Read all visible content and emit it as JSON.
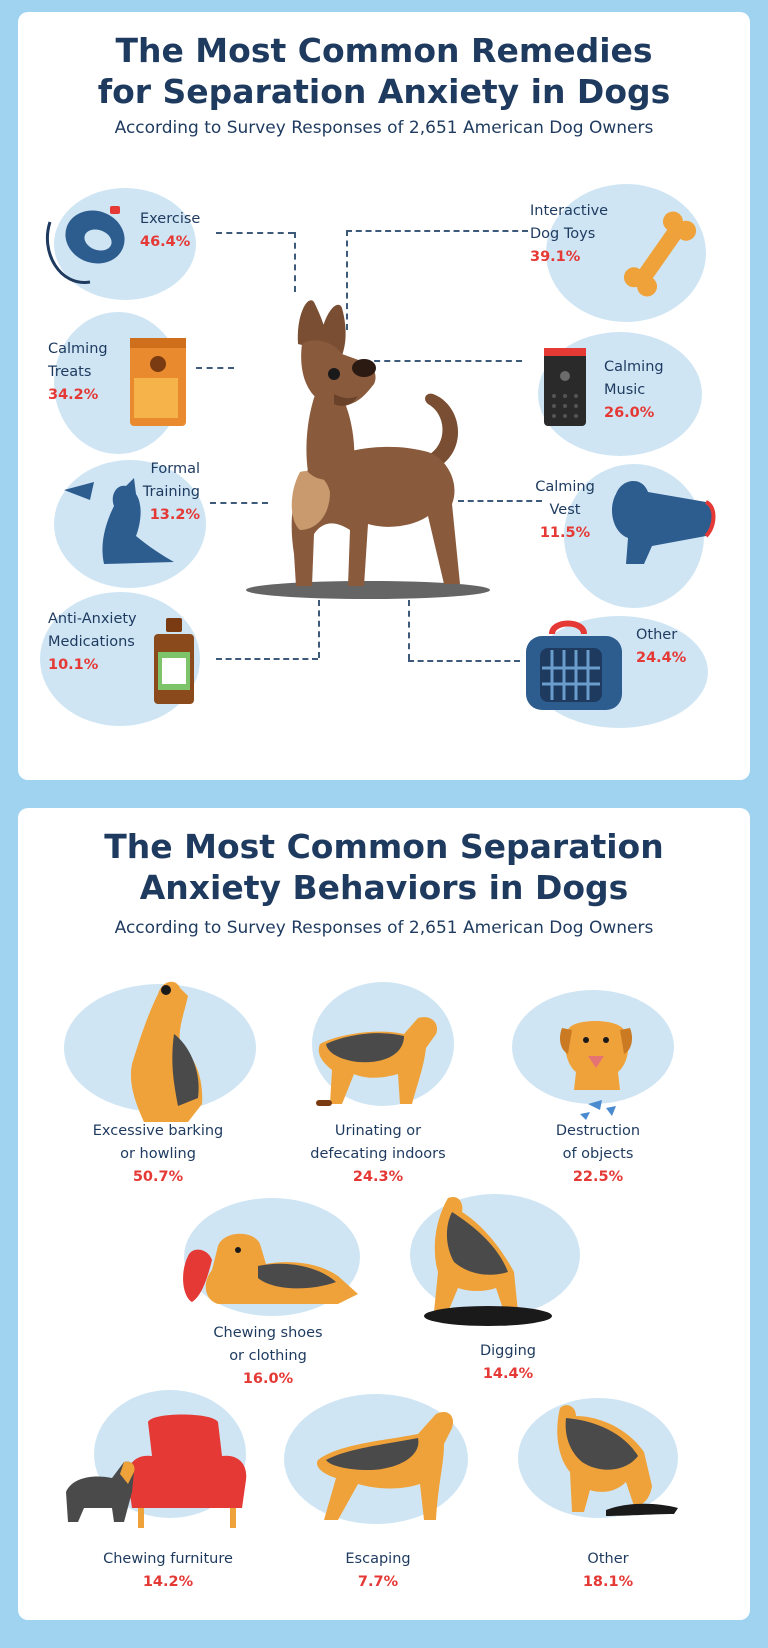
{
  "remedies": {
    "title_line1": "The Most Common Remedies",
    "title_line2": "for Separation Anxiety in Dogs",
    "subtitle": "According to Survey Responses of 2,651 American Dog Owners",
    "items": [
      {
        "label": "Exercise",
        "label2": "",
        "value": "46.4%",
        "icon": "leash-icon"
      },
      {
        "label": "Calming",
        "label2": "Treats",
        "value": "34.2%",
        "icon": "treat-bag-icon"
      },
      {
        "label": "Formal",
        "label2": "Training",
        "value": "13.2%",
        "icon": "training-dog-icon"
      },
      {
        "label": "Anti-Anxiety",
        "label2": "Medications",
        "value": "10.1%",
        "icon": "medicine-bottle-icon"
      },
      {
        "label": "Interactive",
        "label2": "Dog Toys",
        "value": "39.1%",
        "icon": "bone-toy-icon"
      },
      {
        "label": "Calming",
        "label2": "Music",
        "value": "26.0%",
        "icon": "speaker-icon"
      },
      {
        "label": "Calming",
        "label2": "Vest",
        "value": "11.5%",
        "icon": "vest-icon"
      },
      {
        "label": "Other",
        "label2": "",
        "value": "24.4%",
        "icon": "pet-carrier-icon"
      }
    ]
  },
  "behaviors": {
    "title_line1": "The Most Common Separation",
    "title_line2": "Anxiety Behaviors in Dogs",
    "subtitle": "According to Survey Responses of 2,651 American Dog Owners",
    "items": [
      {
        "label": "Excessive barking",
        "label2": "or howling",
        "value": "50.7%",
        "icon": "howling-dog-icon"
      },
      {
        "label": "Urinating or",
        "label2": "defecating indoors",
        "value": "24.3%",
        "icon": "squatting-dog-icon"
      },
      {
        "label": "Destruction",
        "label2": "of objects",
        "value": "22.5%",
        "icon": "dog-broken-object-icon"
      },
      {
        "label": "Chewing shoes",
        "label2": "or clothing",
        "value": "16.0%",
        "icon": "dog-chewing-shoe-icon"
      },
      {
        "label": "Digging",
        "label2": "",
        "value": "14.4%",
        "icon": "digging-dog-icon"
      },
      {
        "label": "Chewing furniture",
        "label2": "",
        "value": "14.2%",
        "icon": "dog-armchair-icon"
      },
      {
        "label": "Escaping",
        "label2": "",
        "value": "7.7%",
        "icon": "walking-dog-icon"
      },
      {
        "label": "Other",
        "label2": "",
        "value": "18.1%",
        "icon": "sniffing-dog-icon"
      }
    ]
  },
  "colors": {
    "background": "#9fd3ef",
    "card": "#ffffff",
    "blob": "#cfe5f4",
    "title": "#1e3a5f",
    "percent": "#e53935",
    "dog_brown": "#8a5a3c",
    "dog_tan": "#c99a6e"
  }
}
